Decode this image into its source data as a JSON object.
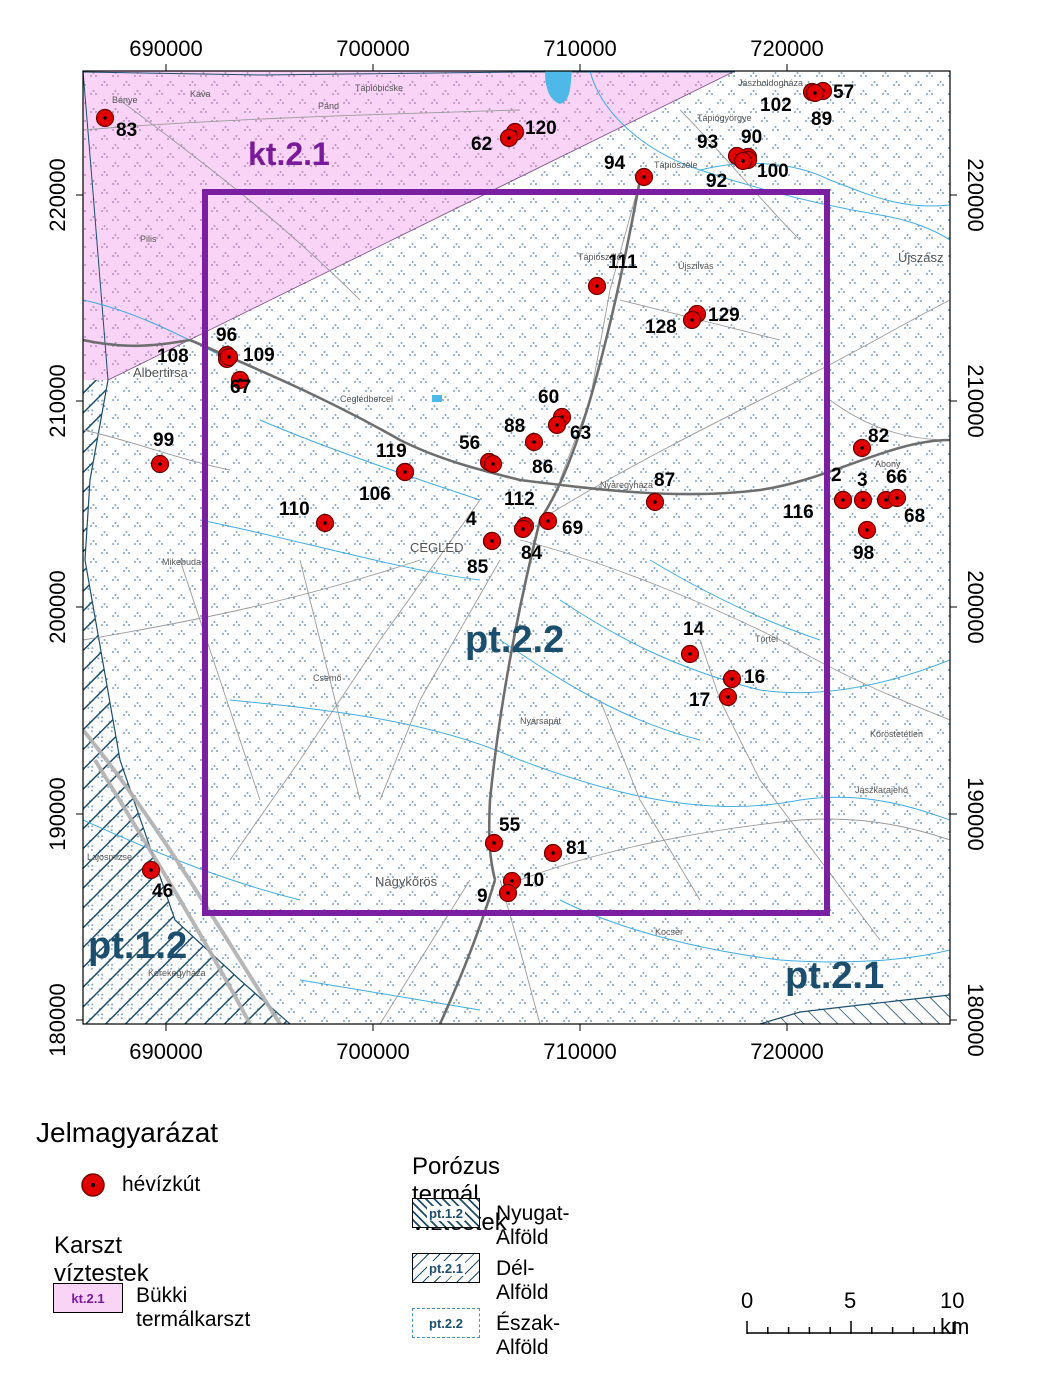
{
  "axes": {
    "x_ticks": [
      "690000",
      "700000",
      "710000",
      "720000"
    ],
    "y_ticks": [
      "220000",
      "210000",
      "200000",
      "190000",
      "180000"
    ]
  },
  "zones": {
    "karst": "kt.2.1",
    "study_area": "pt.2.2",
    "west": "pt.1.2",
    "south": "pt.2.1"
  },
  "places": [
    {
      "name": "Bénye",
      "size": "s"
    },
    {
      "name": "Káva",
      "size": "s"
    },
    {
      "name": "Tápióbicske",
      "size": "s"
    },
    {
      "name": "Pánd",
      "size": "s"
    },
    {
      "name": "Tápiógyörgye",
      "size": "s"
    },
    {
      "name": "Jászboldogháza",
      "size": "s"
    },
    {
      "name": "Tápiószele",
      "size": "s"
    },
    {
      "name": "Tápiószőlős",
      "size": "s"
    },
    {
      "name": "Újszilvás",
      "size": "s"
    },
    {
      "name": "Újszász",
      "size": "b"
    },
    {
      "name": "Pilis",
      "size": "s"
    },
    {
      "name": "Albertirsa",
      "size": "b"
    },
    {
      "name": "Ceglédbercel",
      "size": "s"
    },
    {
      "name": "Nyáregyháza",
      "size": "s"
    },
    {
      "name": "CEGLÉD",
      "size": "b"
    },
    {
      "name": "Abony",
      "size": "s"
    },
    {
      "name": "Mikebuda",
      "size": "s"
    },
    {
      "name": "Törtel",
      "size": "s"
    },
    {
      "name": "Csemő",
      "size": "s"
    },
    {
      "name": "Nyársapát",
      "size": "s"
    },
    {
      "name": "Kőröstetétlen",
      "size": "s"
    },
    {
      "name": "Jászkarajenő",
      "size": "s"
    },
    {
      "name": "Lajosmizse",
      "size": "s"
    },
    {
      "name": "Nagykőrös",
      "size": "b"
    },
    {
      "name": "Kocsér",
      "size": "s"
    },
    {
      "name": "Kerekegyháza",
      "size": "s"
    }
  ],
  "wells": [
    "83",
    "57",
    "102",
    "89",
    "120",
    "62",
    "90",
    "93",
    "94",
    "100",
    "92",
    "111",
    "129",
    "128",
    "96",
    "108",
    "109",
    "67",
    "99",
    "60",
    "63",
    "88",
    "82",
    "56",
    "86",
    "119",
    "106",
    "87",
    "2",
    "3",
    "66",
    "116",
    "68",
    "110",
    "112",
    "4",
    "69",
    "84",
    "98",
    "85",
    "14",
    "16",
    "17",
    "55",
    "81",
    "10",
    "9",
    "46"
  ],
  "legend": {
    "title": "Jelmagyarázat",
    "well_label": "hévízkút",
    "karst_heading": "Karszt víztestek",
    "karst_items": [
      {
        "code": "kt.2.1",
        "label": "Bükki termálkarszt"
      }
    ],
    "porous_heading": "Porózus termál víztestek",
    "porous_items": [
      {
        "code": "pt.1.2",
        "label": "Nyugat-Alföld"
      },
      {
        "code": "pt.2.1",
        "label": "Dél-Alföld"
      },
      {
        "code": "pt.2.2",
        "label": "Észak-Alföld"
      }
    ]
  },
  "scale": {
    "labels": [
      "0",
      "5",
      "10 km"
    ]
  },
  "colors": {
    "karst": "#f9d4f6",
    "study_box": "#7b1fa2",
    "well": "#e00000",
    "water": "#29a3e0",
    "zone_text": "#1c4f6e"
  }
}
